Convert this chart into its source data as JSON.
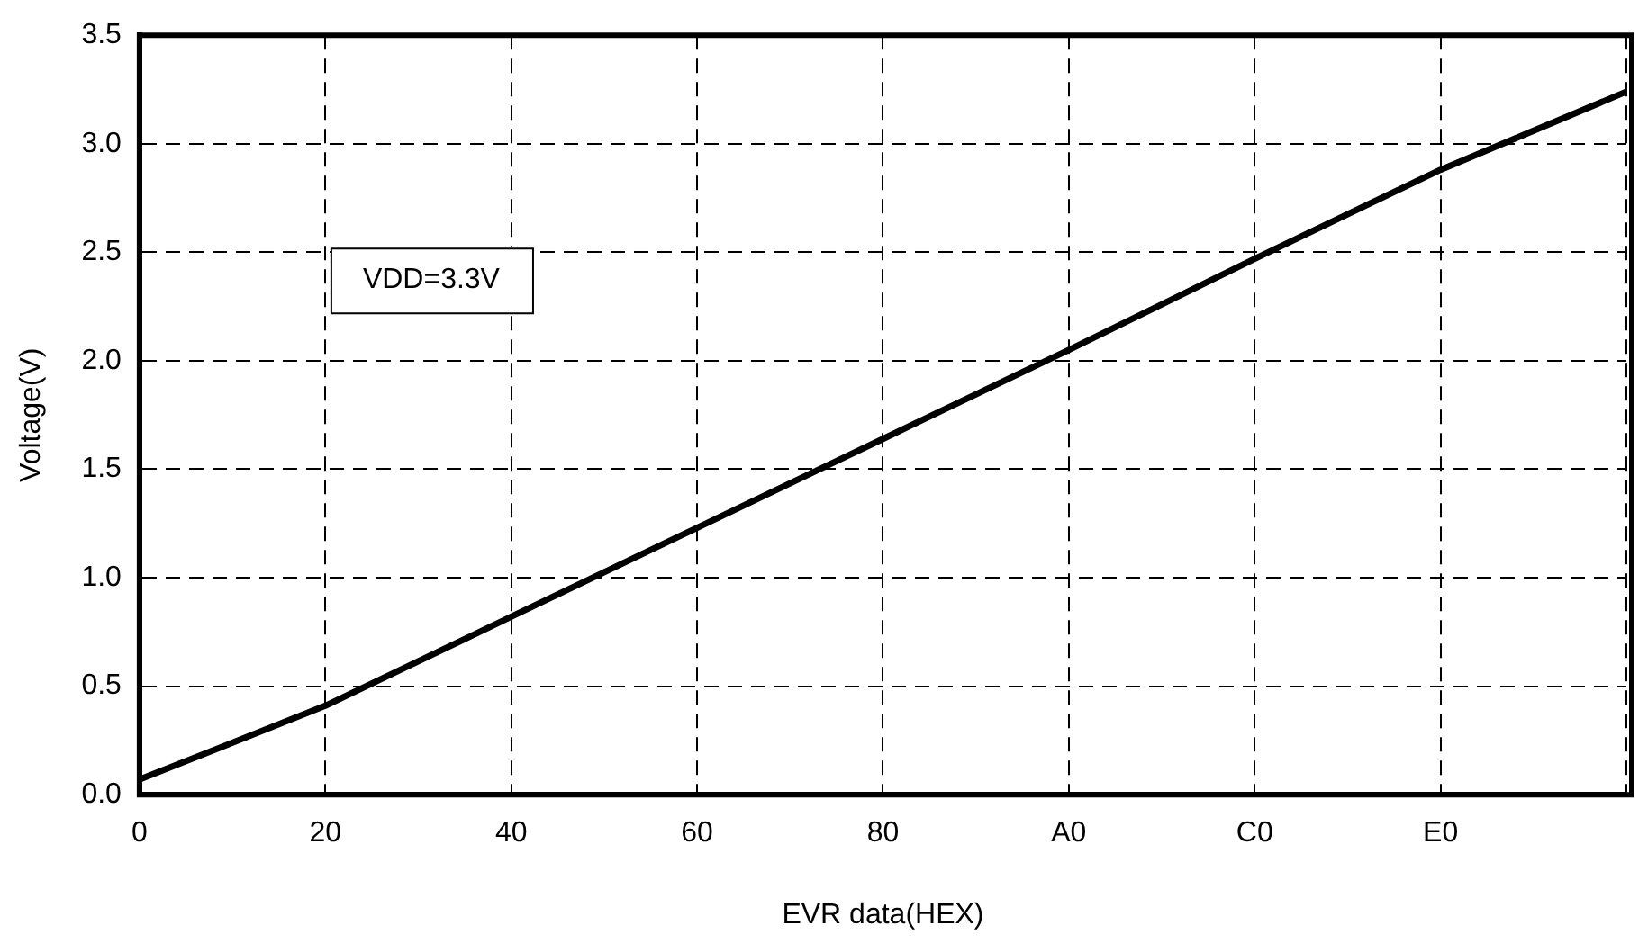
{
  "chart_data": {
    "type": "line",
    "xlabel": "EVR data(HEX)",
    "ylabel": "Voltage(V)",
    "categories": [
      "0",
      "20",
      "40",
      "60",
      "80",
      "A0",
      "C0",
      "E0",
      null
    ],
    "series": [
      {
        "color": "#000000",
        "values": [
          0.07,
          0.41,
          0.82,
          1.23,
          1.64,
          2.05,
          2.47,
          2.88,
          3.24
        ]
      }
    ],
    "ylim": [
      0,
      3.5
    ],
    "yticks": [
      {
        "value": 0,
        "label": "0.0"
      },
      0.5,
      {
        "value": 1,
        "label": "1.0"
      },
      1.5,
      {
        "value": 2,
        "label": "2.0"
      },
      2.5,
      {
        "value": 3,
        "label": "3.0"
      },
      3.5
    ],
    "annotations": [
      "VDD=3.3V"
    ],
    "grid": true,
    "legend": false,
    "marker": "none",
    "line_style": "solid"
  }
}
